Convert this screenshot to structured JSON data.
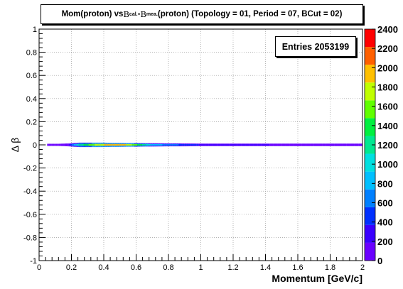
{
  "title": {
    "part1": "Mom(proton) vs ",
    "beta_symbol": "B",
    "sub_cal": "cal.",
    "minus": " - ",
    "sub_mea": "mea.",
    "part2": " (proton) (Topology = 01, Period = 07, BCut = 02)"
  },
  "stats": {
    "label": "Entries",
    "value": "2053199"
  },
  "chart_data": {
    "type": "heatmap",
    "xlabel": "Momentum [GeV/c]",
    "ylabel": "Δ β",
    "xlim": [
      0,
      2
    ],
    "ylim": [
      -1,
      1
    ],
    "x_ticks": [
      "0",
      "0.2",
      "0.4",
      "0.6",
      "0.8",
      "1",
      "1.2",
      "1.4",
      "1.6",
      "1.8",
      "2"
    ],
    "y_ticks": [
      "-1",
      "-0.8",
      "-0.6",
      "-0.4",
      "-0.2",
      "0",
      "0.2",
      "0.4",
      "0.6",
      "0.8",
      "1"
    ],
    "z_ticks": [
      "0",
      "200",
      "400",
      "600",
      "800",
      "1000",
      "1200",
      "1400",
      "1600",
      "1800",
      "2000",
      "2200",
      "2400"
    ],
    "zlim": [
      0,
      2400
    ],
    "grid": true,
    "palette": [
      "#6a00ff",
      "#3a00ff",
      "#0030ff",
      "#0080ff",
      "#00c0ff",
      "#00e0e0",
      "#00e890",
      "#00f040",
      "#60ff00",
      "#c0ff00",
      "#ffc000",
      "#ff6000",
      "#ff0000"
    ],
    "band": {
      "y_center": 0.0,
      "density": [
        {
          "x": 0.05,
          "z": 15,
          "width": 0.006
        },
        {
          "x": 0.12,
          "z": 30,
          "width": 0.006
        },
        {
          "x": 0.18,
          "z": 150,
          "width": 0.008
        },
        {
          "x": 0.21,
          "z": 700,
          "width": 0.01
        },
        {
          "x": 0.25,
          "z": 1150,
          "width": 0.012
        },
        {
          "x": 0.3,
          "z": 1450,
          "width": 0.012
        },
        {
          "x": 0.35,
          "z": 1700,
          "width": 0.012
        },
        {
          "x": 0.4,
          "z": 1850,
          "width": 0.012
        },
        {
          "x": 0.45,
          "z": 1950,
          "width": 0.011
        },
        {
          "x": 0.5,
          "z": 1950,
          "width": 0.011
        },
        {
          "x": 0.55,
          "z": 1800,
          "width": 0.01
        },
        {
          "x": 0.6,
          "z": 1500,
          "width": 0.01
        },
        {
          "x": 0.65,
          "z": 1200,
          "width": 0.009
        },
        {
          "x": 0.7,
          "z": 900,
          "width": 0.009
        },
        {
          "x": 0.8,
          "z": 650,
          "width": 0.008
        },
        {
          "x": 0.9,
          "z": 480,
          "width": 0.008
        },
        {
          "x": 1.0,
          "z": 360,
          "width": 0.007
        },
        {
          "x": 1.2,
          "z": 260,
          "width": 0.007
        },
        {
          "x": 1.4,
          "z": 190,
          "width": 0.007
        },
        {
          "x": 1.6,
          "z": 140,
          "width": 0.007
        },
        {
          "x": 1.8,
          "z": 110,
          "width": 0.007
        },
        {
          "x": 2.0,
          "z": 90,
          "width": 0.007
        }
      ]
    }
  }
}
